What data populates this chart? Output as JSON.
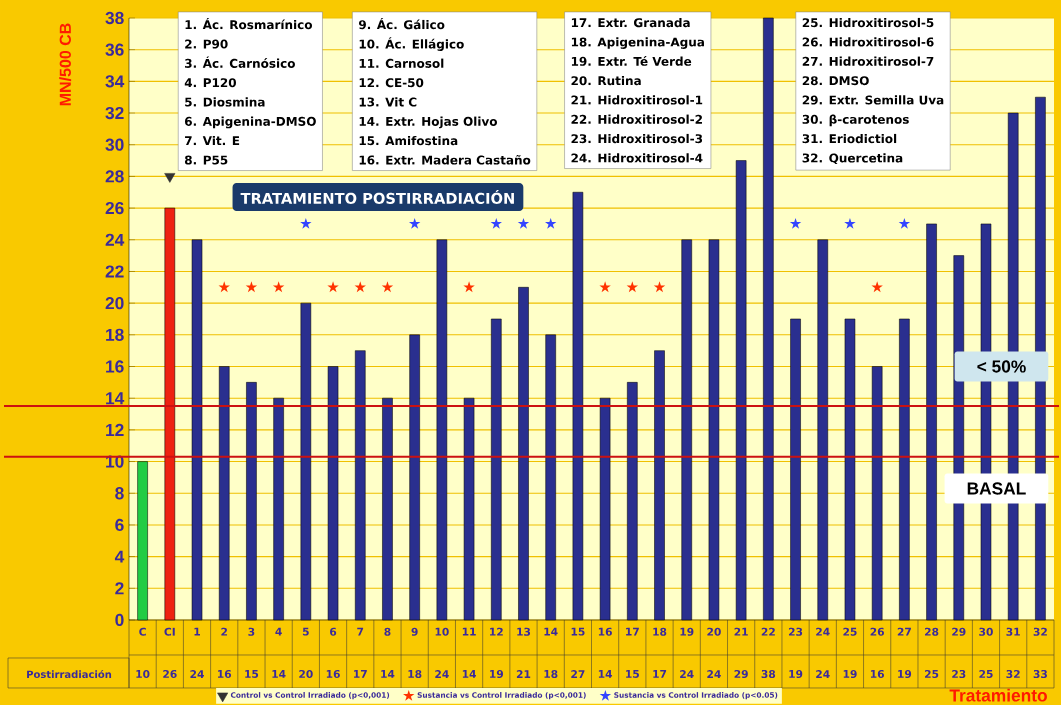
{
  "chart_data": {
    "type": "bar",
    "title": "TRATAMIENTO POSTIRRADIACIÓN",
    "xlabel": "Tratamiento",
    "ylabel": "MN/500 CB",
    "categories": [
      "C",
      "CI",
      "1",
      "2",
      "3",
      "4",
      "5",
      "6",
      "7",
      "8",
      "9",
      "10",
      "11",
      "12",
      "13",
      "14",
      "15",
      "16",
      "17",
      "18",
      "19",
      "20",
      "21",
      "22",
      "23",
      "24",
      "25",
      "26",
      "27",
      "28",
      "29",
      "30",
      "31",
      "32"
    ],
    "series": [
      {
        "colors": [
          "#22cc44",
          "#ee2211",
          "#2a2f8f",
          "#2a2f8f",
          "#2a2f8f",
          "#2a2f8f",
          "#2a2f8f",
          "#2a2f8f",
          "#2a2f8f",
          "#2a2f8f",
          "#2a2f8f",
          "#2a2f8f",
          "#2a2f8f",
          "#2a2f8f",
          "#2a2f8f",
          "#2a2f8f",
          "#2a2f8f",
          "#2a2f8f",
          "#2a2f8f",
          "#2a2f8f",
          "#2a2f8f",
          "#2a2f8f",
          "#2a2f8f",
          "#2a2f8f",
          "#2a2f8f",
          "#2a2f8f",
          "#2a2f8f",
          "#2a2f8f",
          "#2a2f8f",
          "#2a2f8f",
          "#2a2f8f",
          "#2a2f8f",
          "#2a2f8f",
          "#2a2f8f"
        ],
        "values": [
          10,
          26,
          24,
          16,
          15,
          14,
          20,
          16,
          17,
          14,
          18,
          24,
          14,
          19,
          21,
          18,
          27,
          14,
          15,
          17,
          24,
          24,
          29,
          38,
          19,
          24,
          19,
          16,
          19,
          25,
          23,
          25,
          32,
          33
        ],
        "value_labels": [
          "10",
          "26",
          "24",
          "16",
          "15",
          "14",
          "20",
          "16",
          "17",
          "14",
          "18",
          "24",
          "14",
          "19",
          "21",
          "18",
          "27",
          "14",
          "15",
          "17",
          "24",
          "24",
          "29",
          "38",
          "19",
          "24",
          "19",
          "16",
          "19",
          "25",
          "23",
          "25",
          "32",
          "33"
        ]
      },
      {
        "type": "scatter",
        "name": "Control vs Control Irradiado (p<0,001)",
        "color": "#333333",
        "marker": "triangle",
        "x": [
          "CI"
        ],
        "values": [
          28
        ]
      },
      {
        "type": "scatter",
        "name": "Sustancia vs Control Irradiado (p<0,001)",
        "color": "#ff3300",
        "marker": "star",
        "x": [
          "2",
          "3",
          "4",
          "6",
          "7",
          "8",
          "11",
          "16",
          "17",
          "18",
          "26"
        ],
        "values": [
          21,
          21,
          21,
          21,
          21,
          21,
          21,
          21,
          21,
          21,
          21
        ]
      },
      {
        "type": "scatter",
        "name": "Sustancia vs Control Irradiado (p<0.05)",
        "color": "#3344ff",
        "marker": "star",
        "x": [
          "5",
          "9",
          "12",
          "13",
          "14",
          "23",
          "25",
          "27"
        ],
        "values": [
          25,
          25,
          25,
          25,
          25,
          25,
          25,
          25
        ]
      }
    ],
    "ylim": [
      0,
      38
    ],
    "yticks": [
      0,
      2,
      4,
      6,
      8,
      10,
      12,
      14,
      16,
      18,
      20,
      22,
      24,
      26,
      28,
      30,
      32,
      34,
      36,
      38
    ],
    "grid": "y",
    "legend": "bottom",
    "ref_lines": [
      {
        "axis": "y",
        "value": 13.5,
        "color": "#cc1111"
      },
      {
        "axis": "y",
        "value": 10.3,
        "label": "BASAL",
        "color": "#cc1111"
      }
    ],
    "annotations": [
      "Postirradiación",
      "1. Ác. Rosmarínico",
      "2. P90",
      "3. Ác. Carnósico",
      "4. P120",
      "5. Diosmina",
      "6. Apigenina-DMSO",
      "7. Vit. E",
      "8. P55",
      "9. Ác. Gálico",
      "10. Ác. Ellágico",
      "11. Carnosol",
      "12. CE-50",
      "13. Vit C",
      "14. Extr. Hojas Olivo",
      "15. Amifostina",
      "16. Extr. Madera Castaño",
      "17. Extr. Granada",
      "18. Apigenina-Agua",
      "19. Extr. Té Verde",
      "20. Rutina",
      "21. Hidroxitirosol-1",
      "22. Hidroxitirosol-2",
      "23. Hidroxitirosol-3",
      "24. Hidroxitirosol-4",
      "25. Hidroxitirosol-5",
      "26. Hidroxitirosol-6",
      "27. Hidroxitirosol-7",
      "28. DMSO",
      "29. Extr. Semilla Uva",
      "30. β-carotenos",
      "31. Eriodictiol",
      "32. Quercetina",
      "< 50%"
    ]
  }
}
